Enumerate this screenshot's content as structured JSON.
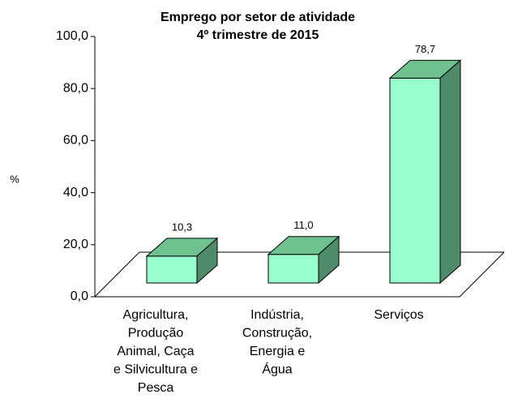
{
  "chart_data": {
    "type": "bar3d",
    "title": "Emprego por setor de atividade",
    "subtitle": "4º trimestre de 2015",
    "y_label": "%",
    "categories": [
      [
        "Agricultura,",
        "Produção",
        "Animal, Caça",
        "e Silvicultura e",
        "Pesca"
      ],
      [
        "Indústria,",
        "Construção,",
        "Energia e",
        "Água"
      ],
      [
        "Serviços"
      ]
    ],
    "values": [
      10.3,
      11.0,
      78.7
    ],
    "value_labels": [
      "10,3",
      "11,0",
      "78,7"
    ],
    "color": "#99ffcc",
    "ylim": [
      0,
      100
    ],
    "yticks": [
      {
        "value": 0,
        "label": "0,0"
      },
      {
        "value": 20,
        "label": "20,0"
      },
      {
        "value": 40,
        "label": "40,0"
      },
      {
        "value": 60,
        "label": "60,0"
      },
      {
        "value": 80,
        "label": "80,0"
      },
      {
        "value": 100,
        "label": "100,0"
      }
    ]
  }
}
